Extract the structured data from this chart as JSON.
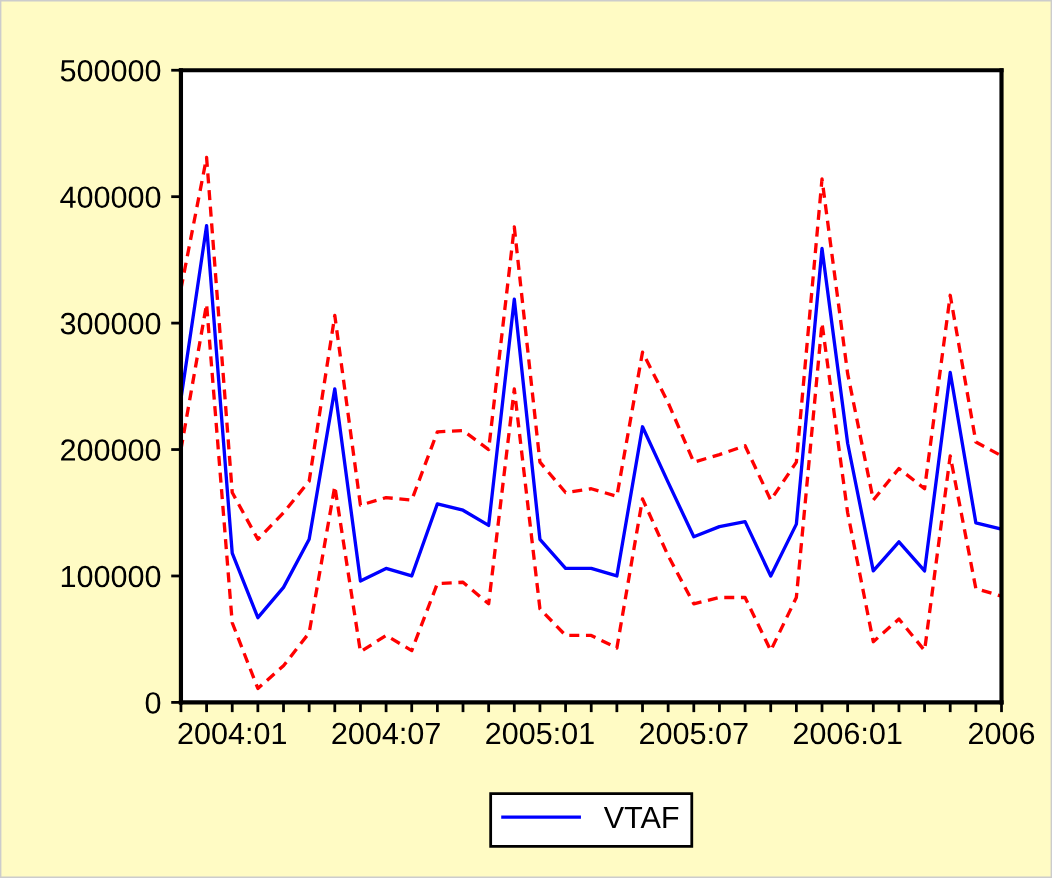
{
  "chart_data": {
    "type": "line",
    "x": [
      "2003-11",
      "2003-12",
      "2004-01",
      "2004-02",
      "2004-03",
      "2004-04",
      "2004-05",
      "2004-06",
      "2004-07",
      "2004-08",
      "2004-09",
      "2004-10",
      "2004-11",
      "2004-12",
      "2005-01",
      "2005-02",
      "2005-03",
      "2005-04",
      "2005-05",
      "2005-06",
      "2005-07",
      "2005-08",
      "2005-09",
      "2005-10",
      "2005-11",
      "2005-12",
      "2006-01",
      "2006-02",
      "2006-03",
      "2006-04",
      "2006-05",
      "2006-06",
      "2006-07"
    ],
    "series": [
      {
        "name": "VTAF",
        "color": "#0000ff",
        "line_style": "solid",
        "values": [
          240000,
          377000,
          118000,
          67000,
          91000,
          129000,
          248000,
          96000,
          106000,
          100000,
          157000,
          152000,
          140000,
          319000,
          129000,
          106000,
          106000,
          100000,
          218000,
          174000,
          131000,
          139000,
          143000,
          100000,
          141000,
          359000,
          205000,
          104000,
          127000,
          104000,
          261000,
          142000,
          137000
        ]
      },
      {
        "color": "#ff0000",
        "line_style": "dashed",
        "values": [
          327000,
          431000,
          166000,
          129000,
          150000,
          175000,
          306000,
          156000,
          162000,
          160000,
          214000,
          215000,
          200000,
          376000,
          190000,
          166000,
          169000,
          163000,
          277000,
          237000,
          190000,
          196000,
          203000,
          160000,
          190000,
          414000,
          260000,
          160000,
          185000,
          169000,
          322000,
          206000,
          195000
        ]
      },
      {
        "color": "#ff0000",
        "line_style": "dashed",
        "values": [
          200000,
          315000,
          63000,
          11000,
          29000,
          55000,
          171000,
          40000,
          53000,
          41000,
          94000,
          95000,
          78000,
          248000,
          74000,
          53000,
          53000,
          43000,
          161000,
          116000,
          78000,
          83000,
          83000,
          41000,
          83000,
          300000,
          150000,
          48000,
          66000,
          41000,
          195000,
          90000,
          84000
        ]
      }
    ],
    "xlim": [
      "2003-11",
      "2006-07"
    ],
    "xticks": [
      {
        "value": "2003-11",
        "label": null
      },
      {
        "value": "2003-12",
        "label": null
      },
      {
        "value": "2004-01",
        "label": "2004:01"
      },
      {
        "value": "2004-02",
        "label": null
      },
      {
        "value": "2004-03",
        "label": null
      },
      {
        "value": "2004-04",
        "label": null
      },
      {
        "value": "2004-05",
        "label": null
      },
      {
        "value": "2004-06",
        "label": null
      },
      {
        "value": "2004-07",
        "label": "2004:07"
      },
      {
        "value": "2004-08",
        "label": null
      },
      {
        "value": "2004-09",
        "label": null
      },
      {
        "value": "2004-10",
        "label": null
      },
      {
        "value": "2004-11",
        "label": null
      },
      {
        "value": "2004-12",
        "label": null
      },
      {
        "value": "2005-01",
        "label": "2005:01"
      },
      {
        "value": "2005-02",
        "label": null
      },
      {
        "value": "2005-03",
        "label": null
      },
      {
        "value": "2005-04",
        "label": null
      },
      {
        "value": "2005-05",
        "label": null
      },
      {
        "value": "2005-06",
        "label": null
      },
      {
        "value": "2005-07",
        "label": "2005:07"
      },
      {
        "value": "2005-08",
        "label": null
      },
      {
        "value": "2005-09",
        "label": null
      },
      {
        "value": "2005-10",
        "label": null
      },
      {
        "value": "2005-11",
        "label": null
      },
      {
        "value": "2005-12",
        "label": null
      },
      {
        "value": "2006-01",
        "label": "2006:01"
      },
      {
        "value": "2006-02",
        "label": null
      },
      {
        "value": "2006-03",
        "label": null
      },
      {
        "value": "2006-04",
        "label": null
      },
      {
        "value": "2006-05",
        "label": null
      },
      {
        "value": "2006-06",
        "label": null
      },
      {
        "value": "2006-07",
        "label": "2006"
      }
    ],
    "ylim": [
      0,
      500000
    ],
    "yticks": [
      0,
      100000,
      200000,
      300000,
      400000,
      500000
    ],
    "grid": false,
    "legend": "bottom",
    "marker": "none"
  }
}
